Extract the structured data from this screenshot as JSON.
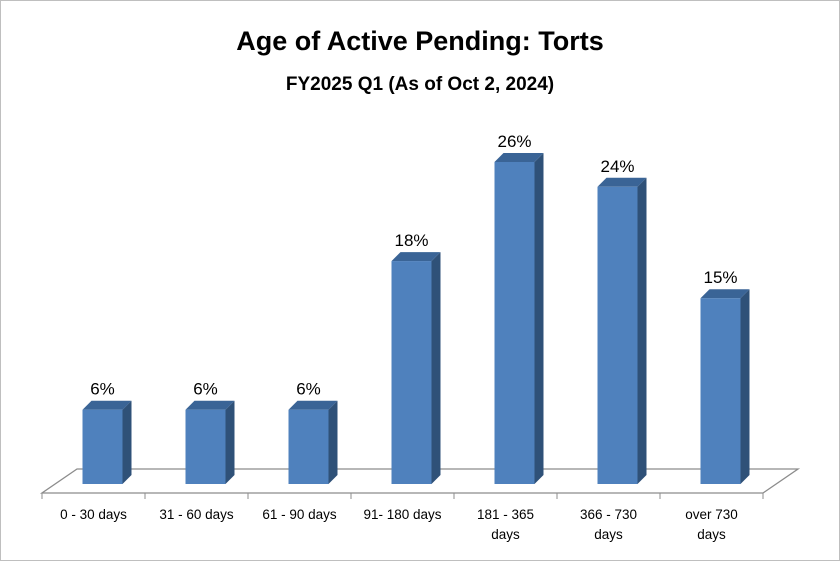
{
  "chart_data": {
    "type": "bar",
    "title": "Age of Active Pending: Torts",
    "subtitle": "FY2025 Q1 (As of Oct 2, 2024)",
    "categories": [
      [
        "0 - 30 days"
      ],
      [
        "31 - 60 days"
      ],
      [
        "61 - 90 days"
      ],
      [
        "91- 180 days"
      ],
      [
        "181 - 365",
        "days"
      ],
      [
        "366 - 730",
        "days"
      ],
      [
        "over 730",
        "days"
      ]
    ],
    "values": [
      6,
      6,
      6,
      18,
      26,
      24,
      15
    ],
    "value_labels": [
      "6%",
      "6%",
      "6%",
      "18%",
      "26%",
      "24%",
      "15%"
    ],
    "unit": "%",
    "xlabel": "",
    "ylabel": "",
    "ylim": [
      0,
      30
    ],
    "grid": false,
    "legend": "none",
    "colors": {
      "front": "#4F81BD",
      "side": "#2F5178",
      "top": "#3A6496",
      "floor": "#ffffff",
      "floor_stroke": "#8c8c8c"
    }
  }
}
